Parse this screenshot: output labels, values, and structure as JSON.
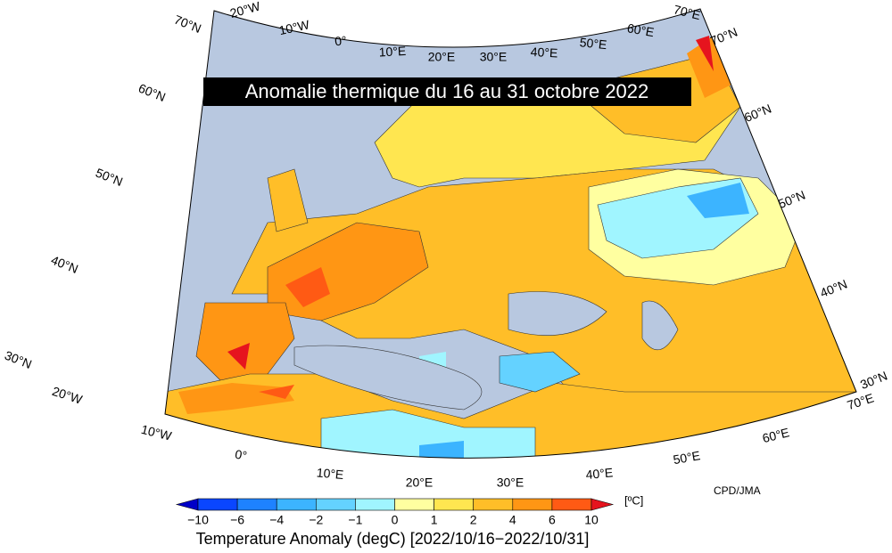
{
  "title": "Anomalie thermique du 16 au 31 octobre 2022",
  "longitude_labels": {
    "top": [
      "20°W",
      "10°W",
      "0°",
      "10°E",
      "20°E",
      "30°E",
      "40°E",
      "50°E",
      "60°E",
      "70°E"
    ],
    "bottom": [
      "20°W",
      "10°W",
      "0°",
      "10°E",
      "20°E",
      "30°E",
      "40°E",
      "50°E",
      "60°E",
      "70°E"
    ]
  },
  "latitude_labels": {
    "left": [
      "70°N",
      "60°N",
      "50°N",
      "40°N",
      "30°N"
    ],
    "right": [
      "70°N",
      "60°N",
      "50°N",
      "40°N",
      "30°N"
    ]
  },
  "colorbar": {
    "ticks": [
      "−10",
      "−6",
      "−4",
      "−2",
      "−1",
      "0",
      "1",
      "2",
      "4",
      "6",
      "10"
    ],
    "colors": [
      "#0000c8",
      "#0a46ff",
      "#1e82ff",
      "#3cb4ff",
      "#64d2ff",
      "#a0f5ff",
      "#ffffa0",
      "#ffe650",
      "#ffbe28",
      "#ff9614",
      "#ff5a14",
      "#e6141e"
    ],
    "unit": "[ºC]"
  },
  "credit": "CPD/JMA",
  "caption": "Temperature Anomaly (degC) [2022/10/16−2022/10/31]"
}
